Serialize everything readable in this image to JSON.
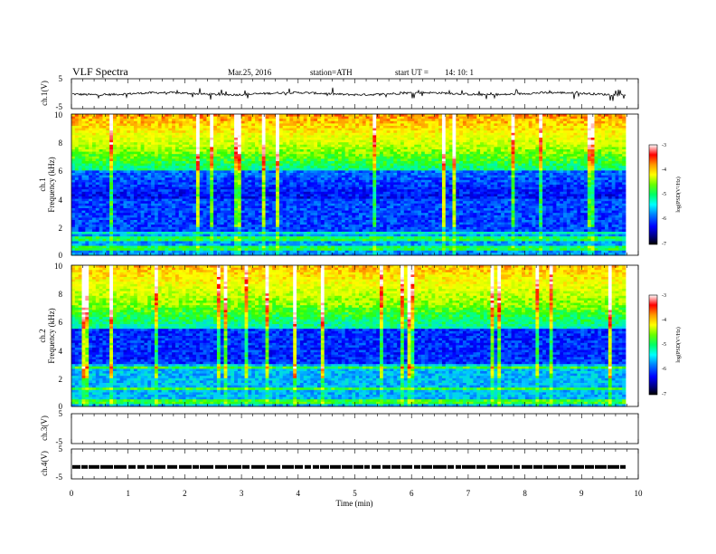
{
  "header": {
    "title": "VLF Spectra",
    "date": "Mar.25, 2016",
    "station": "station=ATH",
    "start": "start UT =",
    "start_time": "14: 10: 1"
  },
  "colors": {
    "spectrum_stops": [
      "#000033",
      "#00008b",
      "#0000ff",
      "#0066ff",
      "#00ccff",
      "#00ff99",
      "#33ff00",
      "#ccff00",
      "#ffff00",
      "#ff9900",
      "#ff0000",
      "#ffffff"
    ]
  },
  "chart_data": {
    "type": "heatmap",
    "title": "VLF Spectra",
    "xlabel": "Time (min)",
    "xlim": [
      0,
      10
    ],
    "x_ticks": [
      "0",
      "1",
      "2",
      "3",
      "4",
      "5",
      "6",
      "7",
      "8",
      "9",
      "10"
    ],
    "panels": [
      {
        "id": "ch1v",
        "type": "line",
        "ylabel": "ch.1(V)",
        "ylim": [
          -5,
          5
        ],
        "y_ticks": [
          "5",
          "-5"
        ],
        "baseline_value": 0
      },
      {
        "id": "ch1spec",
        "type": "heatmap",
        "ylabel_top": "ch.1",
        "ylabel": "Frequency (kHz)",
        "ylim": [
          0,
          10
        ],
        "y_ticks": [
          "0",
          "2",
          "4",
          "6",
          "8",
          "10"
        ],
        "colorbar": {
          "label": "log(PSD(V²/Hz)",
          "range": [
            -7,
            -3
          ],
          "ticks": [
            "-3",
            "-4",
            "-5",
            "-6",
            "-7"
          ]
        }
      },
      {
        "id": "ch2spec",
        "type": "heatmap",
        "ylabel_top": "ch.2",
        "ylabel": "Frequency (kHz)",
        "ylim": [
          0,
          10
        ],
        "y_ticks": [
          "0",
          "2",
          "4",
          "6",
          "8",
          "10"
        ],
        "colorbar": {
          "label": "log(PSD(V²/Hz)",
          "range": [
            -7,
            -3
          ],
          "ticks": [
            "-3",
            "-4",
            "-5",
            "-6",
            "-7"
          ]
        }
      },
      {
        "id": "ch3v",
        "type": "line",
        "ylabel": "ch.3(V)",
        "ylim": [
          -5,
          5
        ],
        "y_ticks": [
          "5",
          "-5"
        ]
      },
      {
        "id": "ch4v",
        "type": "line",
        "ylabel": "ch.4(V)",
        "ylim": [
          -5,
          5
        ],
        "y_ticks": [
          "5",
          "-5"
        ],
        "baseline_value": -1
      }
    ]
  }
}
